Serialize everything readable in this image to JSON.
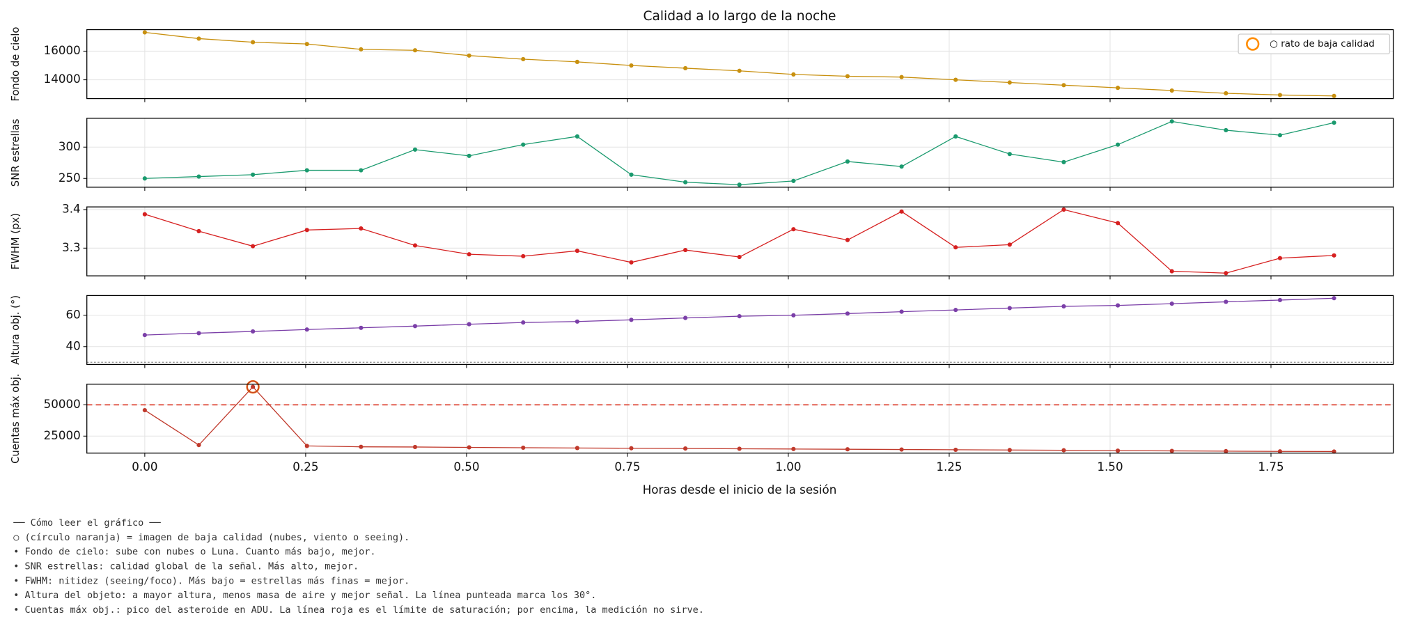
{
  "chart_data": {
    "type": "line",
    "title": "Calidad a lo largo de la noche",
    "xlabel": "Horas desde el inicio de la sesión",
    "x": [
      0,
      0.084,
      0.168,
      0.252,
      0.336,
      0.42,
      0.504,
      0.588,
      0.672,
      0.756,
      0.84,
      0.924,
      1.008,
      1.092,
      1.176,
      1.26,
      1.344,
      1.428,
      1.512,
      1.596,
      1.68,
      1.764,
      1.848
    ],
    "xlim": [
      -0.09,
      1.94
    ],
    "xticks": [
      {
        "value": 0,
        "label": "0.00"
      },
      0.25,
      {
        "value": 0.5,
        "label": "0.50"
      },
      0.75,
      {
        "value": 1,
        "label": "1.00"
      },
      1.25,
      {
        "value": 1.5,
        "label": "1.50"
      },
      1.75
    ],
    "grid": true,
    "legend": {
      "label": "○ rato de baja calidad",
      "color": "#ff8c00",
      "loc": "upper right"
    },
    "panels": [
      {
        "ylabel": "Fondo de cielo",
        "color": "#c8900f",
        "ylim": [
          12690,
          17500
        ],
        "yticks": [
          14000,
          16000
        ],
        "values": [
          17310,
          16875,
          16625,
          16500,
          16125,
          16060,
          15690,
          15440,
          15250,
          15000,
          14810,
          14625,
          14375,
          14250,
          14190,
          14000,
          13810,
          13625,
          13440,
          13250,
          13060,
          12940,
          12875
        ]
      },
      {
        "ylabel": "SNR estrellas",
        "color": "#1a9a6e",
        "ylim": [
          236,
          346
        ],
        "yticks": [
          250,
          300
        ],
        "values": [
          250,
          253,
          256,
          263,
          263,
          296,
          286,
          304,
          317,
          256,
          244,
          240,
          246,
          277,
          269,
          317,
          289,
          276,
          304,
          341,
          327,
          319,
          339
        ]
      },
      {
        "ylabel": "FWHM (px)",
        "color": "#d62020",
        "ylim": [
          3.228,
          3.407
        ],
        "yticks": [
          3.3,
          3.4
        ],
        "values": [
          3.388,
          3.344,
          3.305,
          3.347,
          3.351,
          3.307,
          3.284,
          3.279,
          3.293,
          3.263,
          3.295,
          3.277,
          3.349,
          3.321,
          3.395,
          3.302,
          3.309,
          3.4,
          3.365,
          3.24,
          3.235,
          3.274,
          3.281
        ]
      },
      {
        "ylabel": "Altura obj. (°)",
        "color": "#7b3fa8",
        "ylim": [
          28.6,
          72.6
        ],
        "yticks": [
          40,
          60
        ],
        "refline": {
          "value": 30,
          "color": "#888888",
          "style": "dotted"
        },
        "values": [
          47.4,
          48.6,
          49.7,
          50.9,
          52.0,
          53.1,
          54.3,
          55.4,
          56.0,
          57.1,
          58.3,
          59.4,
          60.0,
          61.1,
          62.3,
          63.4,
          64.6,
          65.7,
          66.3,
          67.4,
          68.6,
          69.7,
          70.9
        ]
      },
      {
        "ylabel": "Cuentas máx obj.",
        "color": "#c0392b",
        "ylim": [
          11430,
          66430
        ],
        "yticks": [
          25000,
          50000
        ],
        "refline": {
          "value": 50000,
          "color": "#e05545",
          "style": "dashed"
        },
        "low_quality_points": [
          2
        ],
        "values": [
          45700,
          17870,
          64280,
          17160,
          16440,
          16300,
          16000,
          15730,
          15500,
          15300,
          15100,
          14900,
          14700,
          14500,
          14300,
          14100,
          13900,
          13700,
          13400,
          13200,
          13000,
          12800,
          12700
        ]
      }
    ]
  },
  "notes": [
    "── Cómo leer el gráfico ──",
    "○ (círculo naranja) = imagen de baja calidad (nubes, viento o seeing).",
    "• Fondo de cielo: sube con nubes o Luna. Cuanto más bajo, mejor.",
    "• SNR estrellas: calidad global de la señal. Más alto, mejor.",
    "• FWHM: nitidez (seeing/foco). Más bajo = estrellas más finas = mejor.",
    "• Altura del objeto: a mayor altura, menos masa de aire y mejor señal. La línea punteada marca los 30°.",
    "• Cuentas máx obj.: pico del asteroide en ADU. La línea roja es el límite de saturación; por encima, la medición no sirve."
  ]
}
